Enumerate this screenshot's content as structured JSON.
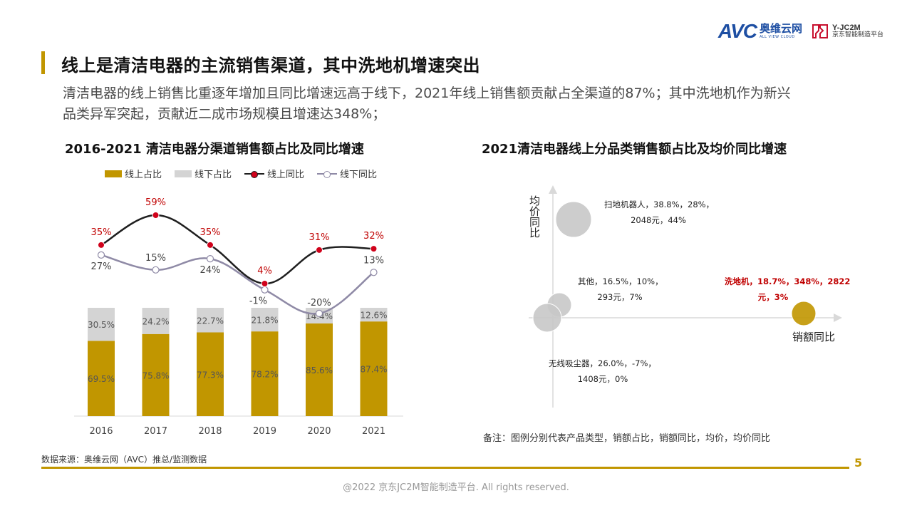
{
  "logos": {
    "avc_mark": "AVC",
    "avc_cn": "奥维云网",
    "avc_en": "ALL VIEW CLOUD",
    "y_line1": "Y-JC2M",
    "y_line2": "京东智能制造平台"
  },
  "header": {
    "title": "线上是清洁电器的主流销售渠道，其中洗地机增速突出",
    "subtitle": "清洁电器的线上销售比重逐年增加且同比增速远高于线下，2021年线上销售额贡献占全渠道的87%；其中洗地机作为新兴品类异军突起，贡献近二成市场规模且增速达348%；"
  },
  "colors": {
    "gold": "#c19600",
    "gray": "#d4d4d4",
    "dark_line": "#1f1f1f",
    "gray_line": "#8f8aa6",
    "red_label": "#c00000",
    "bubble_gray": "#c8c8c8"
  },
  "left_chart": {
    "title": "2016-2021 清洁电器分渠道销售额占比及同比增速",
    "legend": [
      "线上占比",
      "线下占比",
      "线上同比",
      "线下同比"
    ]
  },
  "right_chart": {
    "title": "2021清洁电器线上分品类销售额占比及均价同比增速",
    "y_axis_label": "均价同比",
    "x_axis_label": "销额同比",
    "bubble_labels": [
      [
        "扫地机器人，38.8%，28%，",
        "2048元，44%"
      ],
      [
        "其他，16.5%，10%，",
        "293元，7%"
      ],
      [
        "洗地机，18.7%，348%，2822",
        "元，3%"
      ],
      [
        "无线吸尘器，26.0%，-7%，",
        "1408元，0%"
      ]
    ]
  },
  "chart_data": [
    {
      "type": "bar",
      "title": "2016-2021 清洁电器分渠道销售额占比及同比增速",
      "categories": [
        "2016",
        "2017",
        "2018",
        "2019",
        "2020",
        "2021"
      ],
      "series": [
        {
          "name": "线上占比",
          "kind": "stacked-bar",
          "values": [
            69.5,
            75.8,
            77.3,
            78.2,
            85.6,
            87.4
          ],
          "labels": [
            "69.5%",
            "75.8%",
            "77.3%",
            "78.2%",
            "85.6%",
            "87.4%"
          ]
        },
        {
          "name": "线下占比",
          "kind": "stacked-bar",
          "values": [
            30.5,
            24.2,
            22.7,
            21.8,
            14.4,
            12.6
          ],
          "labels": [
            "30.5%",
            "24.2%",
            "22.7%",
            "21.8%",
            "14.4%",
            "12.6%"
          ]
        },
        {
          "name": "线上同比",
          "kind": "line",
          "values": [
            35,
            59,
            35,
            4,
            31,
            32
          ],
          "labels": [
            "35%",
            "59%",
            "35%",
            "4%",
            "31%",
            "32%"
          ]
        },
        {
          "name": "线下同比",
          "kind": "line",
          "values": [
            27,
            15,
            24,
            -1,
            -20,
            13
          ],
          "labels": [
            "27%",
            "15%",
            "24%",
            "-1%",
            "-20%",
            "13%"
          ]
        }
      ],
      "legend_position": "top"
    },
    {
      "type": "scatter",
      "title": "2021清洁电器线上分品类销售额占比及均价同比增速",
      "xlabel": "销额同比",
      "ylabel": "均价同比",
      "series": [
        {
          "name": "扫地机器人",
          "share": 38.8,
          "x": 28,
          "price": 2048,
          "y": 44,
          "highlight": false
        },
        {
          "name": "其他",
          "share": 16.5,
          "x": 10,
          "price": 293,
          "y": 7,
          "highlight": false
        },
        {
          "name": "洗地机",
          "share": 18.7,
          "x": 348,
          "price": 2822,
          "y": 3,
          "highlight": true
        },
        {
          "name": "无线吸尘器",
          "share": 26.0,
          "x": -7,
          "price": 1408,
          "y": 0,
          "highlight": false
        }
      ]
    }
  ],
  "footer": {
    "note": "备注：图例分别代表产品类型，销额占比，销额同比，均价，均价同比",
    "source": "数据来源：奥维云网（AVC）推总/监测数据",
    "page_number": "5",
    "copyright": "@2022 京东JC2M智能制造平台. All rights reserved."
  }
}
